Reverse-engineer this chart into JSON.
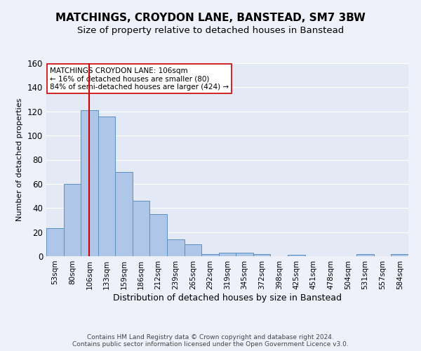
{
  "title": "MATCHINGS, CROYDON LANE, BANSTEAD, SM7 3BW",
  "subtitle": "Size of property relative to detached houses in Banstead",
  "xlabel": "Distribution of detached houses by size in Banstead",
  "ylabel": "Number of detached properties",
  "categories": [
    "53sqm",
    "80sqm",
    "106sqm",
    "133sqm",
    "159sqm",
    "186sqm",
    "212sqm",
    "239sqm",
    "265sqm",
    "292sqm",
    "319sqm",
    "345sqm",
    "372sqm",
    "398sqm",
    "425sqm",
    "451sqm",
    "478sqm",
    "504sqm",
    "531sqm",
    "557sqm",
    "584sqm"
  ],
  "values": [
    23,
    60,
    121,
    116,
    70,
    46,
    35,
    14,
    10,
    2,
    3,
    3,
    2,
    0,
    1,
    0,
    0,
    0,
    2,
    0,
    2
  ],
  "bar_color": "#aec6e8",
  "bar_edge_color": "#5a8fc2",
  "vline_x_index": 2,
  "vline_color": "#cc0000",
  "annotation_line1": "MATCHINGS CROYDON LANE: 106sqm",
  "annotation_line2": "← 16% of detached houses are smaller (80)",
  "annotation_line3": "84% of semi-detached houses are larger (424) →",
  "annotation_box_color": "#ffffff",
  "annotation_box_edge": "#cc0000",
  "ylim": [
    0,
    160
  ],
  "yticks": [
    0,
    20,
    40,
    60,
    80,
    100,
    120,
    140,
    160
  ],
  "footer1": "Contains HM Land Registry data © Crown copyright and database right 2024.",
  "footer2": "Contains public sector information licensed under the Open Government Licence v3.0.",
  "background_color": "#eef1fa",
  "plot_bg_color": "#e4eaf5",
  "grid_color": "#ffffff",
  "title_fontsize": 11,
  "subtitle_fontsize": 9.5,
  "xlabel_fontsize": 9,
  "ylabel_fontsize": 8,
  "tick_fontsize": 7.5,
  "annotation_fontsize": 7.5,
  "footer_fontsize": 6.5
}
